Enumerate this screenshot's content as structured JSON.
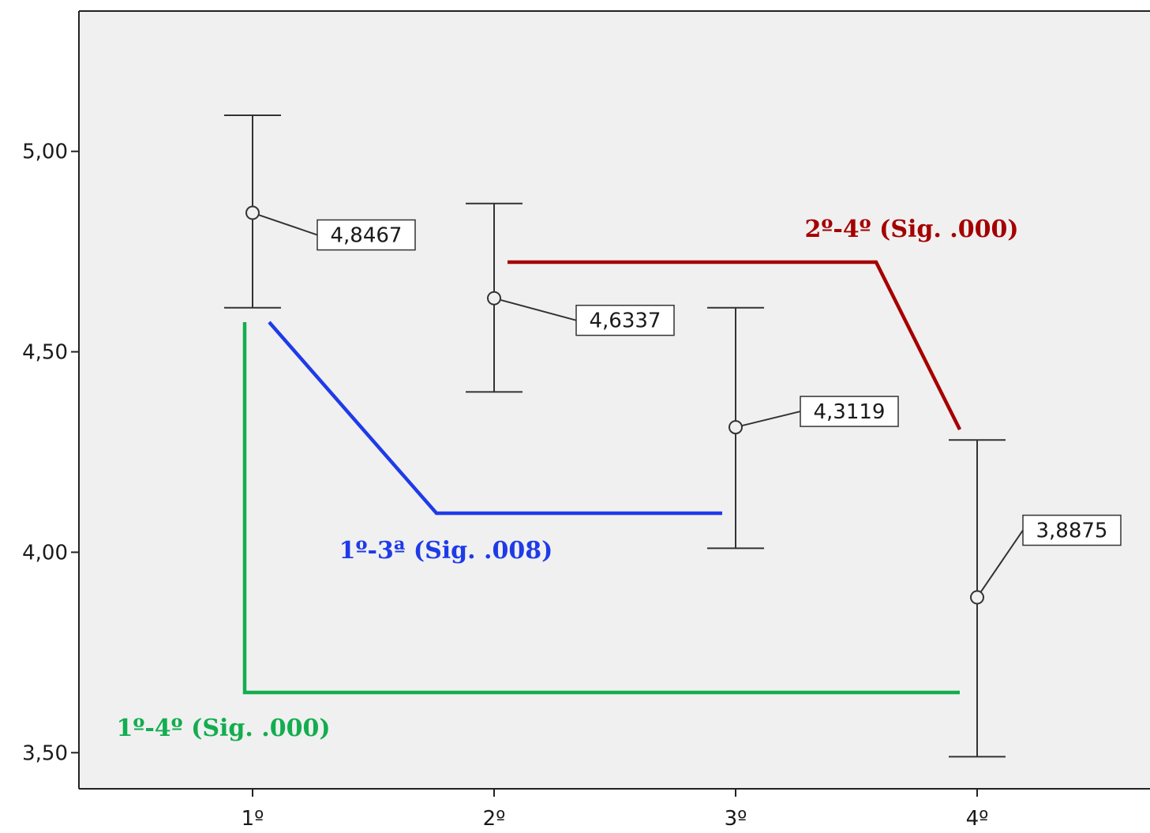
{
  "chart_data": {
    "type": "errorbar",
    "categories": [
      "1º",
      "2º",
      "3º",
      "4º"
    ],
    "means": [
      4.8467,
      4.6337,
      4.3119,
      3.8875
    ],
    "mean_labels": [
      "4,8467",
      "4,6337",
      "4,3119",
      "3,8875"
    ],
    "ci_upper": [
      5.09,
      4.87,
      4.61,
      4.28
    ],
    "ci_lower": [
      4.61,
      4.4,
      4.01,
      3.49
    ],
    "ylim": [
      3.41,
      5.35
    ],
    "yticks": [
      5.0,
      4.5,
      4.0,
      3.5
    ],
    "ytick_labels": [
      "5,00",
      "4,50",
      "4,00",
      "3,50"
    ],
    "grid": false,
    "comparisons": [
      {
        "label": "2º-4º (Sig. .000)",
        "color": "#a50000",
        "from": 2,
        "to": 4
      },
      {
        "label": "1º-3ª (Sig. .008)",
        "color": "#1f3be8",
        "from": 1,
        "to": 3
      },
      {
        "label": "1º-4º (Sig. .000)",
        "color": "#12ad4f",
        "from": 1,
        "to": 4
      }
    ],
    "colors": {
      "plot_bg": "#f0f0f0",
      "axis": "#222222",
      "marker": "#333333"
    }
  }
}
